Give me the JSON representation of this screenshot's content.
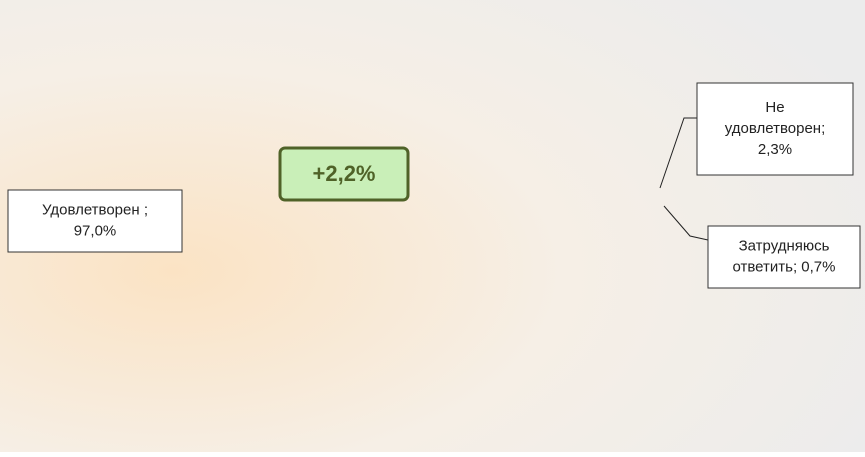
{
  "chart_data": {
    "type": "pie",
    "categories": [
      "Удовлетворен ;",
      "Не удовлетворен;",
      "Затрудняюсь ответить;"
    ],
    "values": [
      97.0,
      2.3,
      0.7
    ],
    "value_labels": [
      "97,0%",
      "2,3%",
      "0,7%"
    ],
    "colors": [
      "#1fbf55",
      "#e01818",
      "#a6a6a6"
    ],
    "annotation": "+2,2%"
  }
}
